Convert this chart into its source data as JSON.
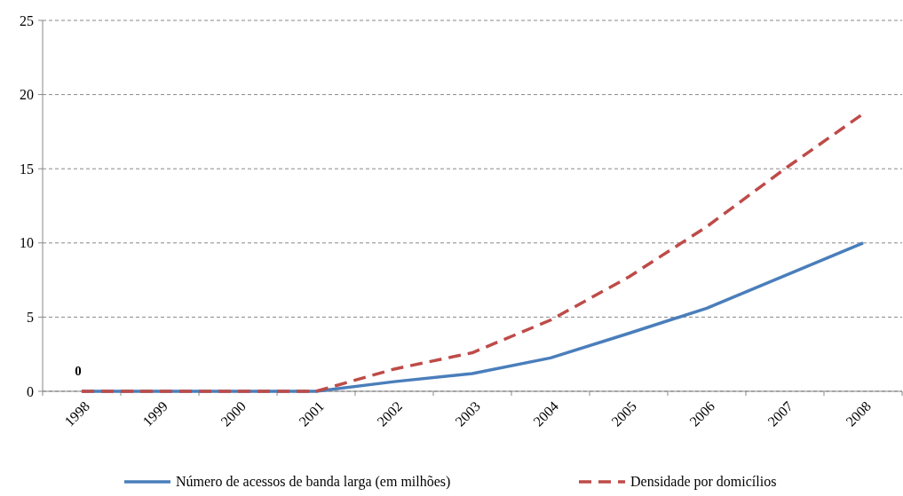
{
  "chart_data": {
    "type": "line",
    "categories": [
      "1998",
      "1999",
      "2000",
      "2001",
      "2002",
      "2003",
      "2004",
      "2005",
      "2006",
      "2007",
      "2008"
    ],
    "series": [
      {
        "name": "Número de acessos de banda larga (em milhões)",
        "color": "#4a7ebb",
        "line_style": "solid",
        "values": [
          0,
          0,
          0,
          0,
          0.65,
          1.2,
          2.25,
          3.9,
          5.6,
          7.8,
          10
        ],
        "value_labels": [
          "0",
          null,
          null,
          null,
          null,
          null,
          null,
          null,
          null,
          null,
          null
        ]
      },
      {
        "name": "Densidade por domicílios",
        "color": "#be4b48",
        "line_style": "dashed",
        "values": [
          0,
          0,
          0,
          0,
          1.5,
          2.6,
          4.8,
          7.7,
          11.1,
          15,
          18.7
        ]
      }
    ],
    "ylim": [
      0,
      25
    ],
    "yticks": [
      0,
      5,
      10,
      15,
      20,
      25
    ],
    "grid": "y",
    "legend": "bottom",
    "marker": "none"
  }
}
